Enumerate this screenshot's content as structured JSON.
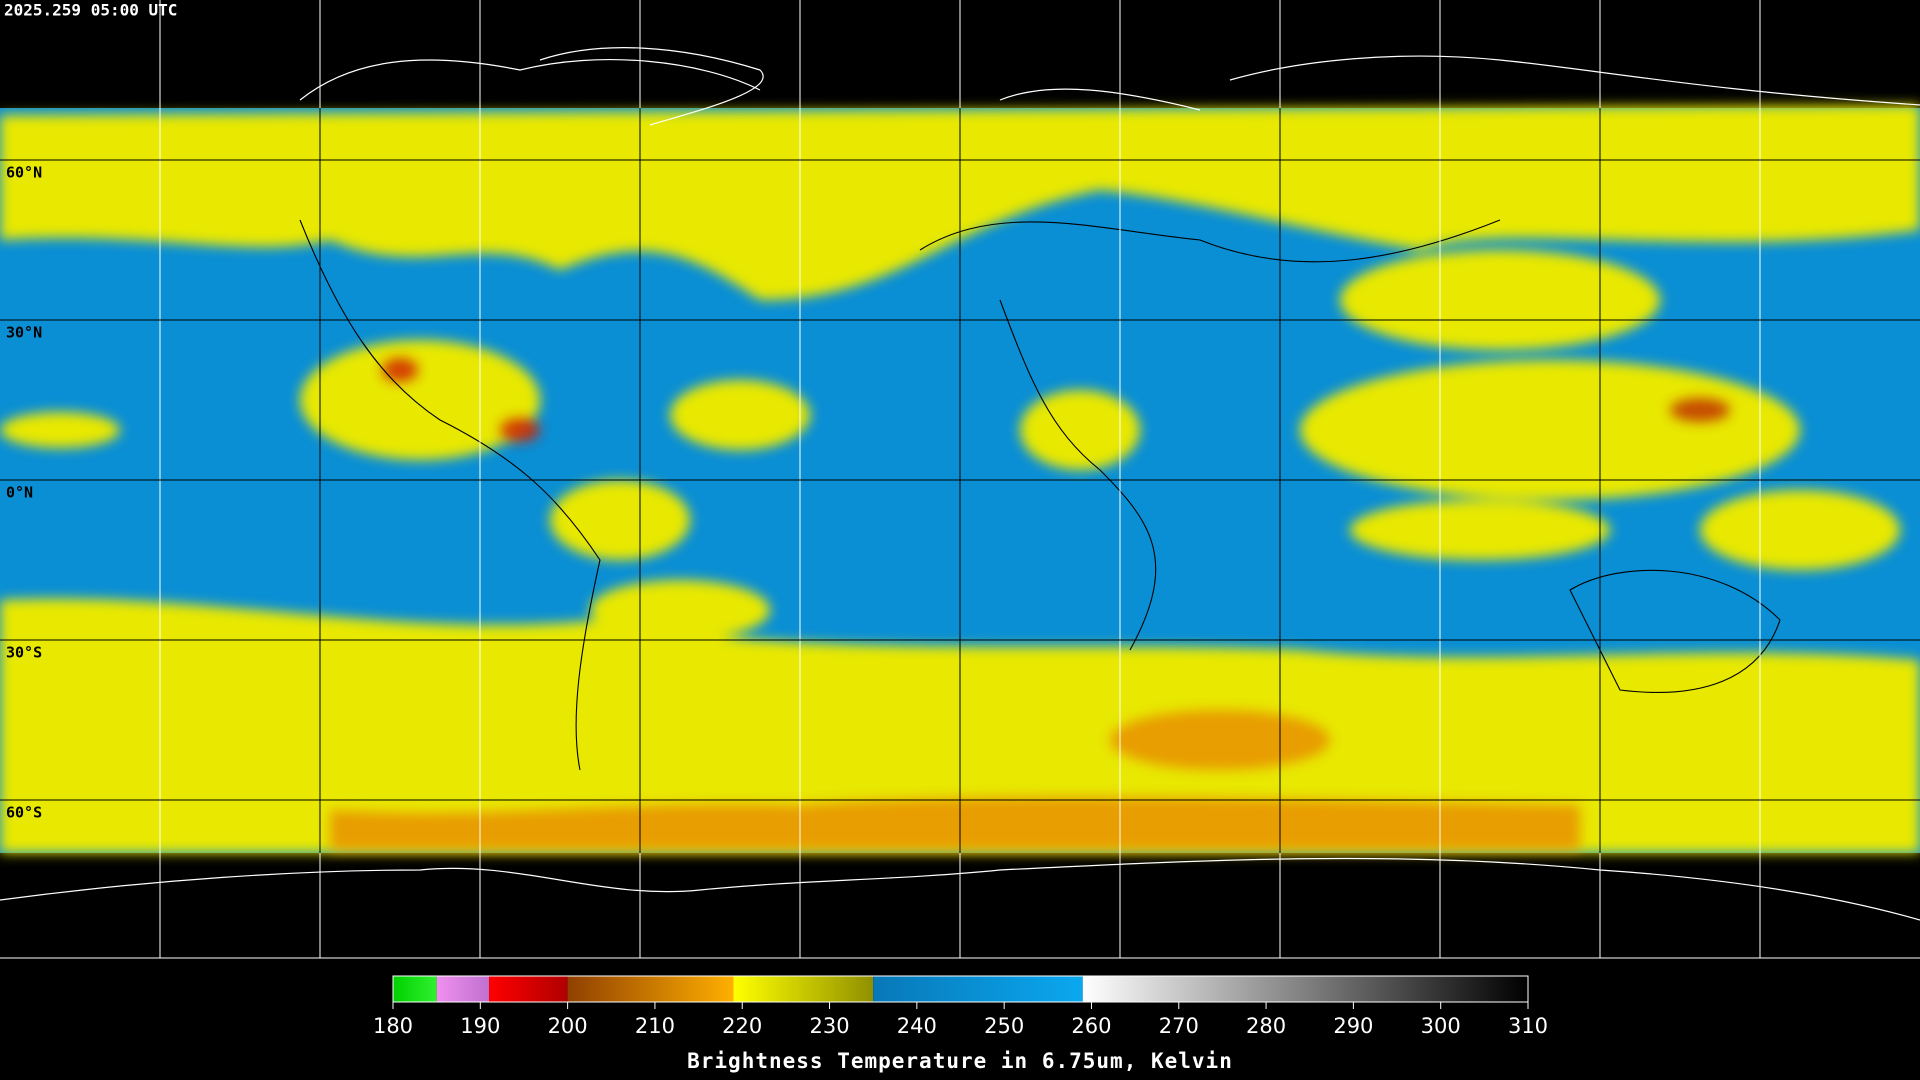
{
  "timestamp": "2025.259 05:00 UTC",
  "map": {
    "ylim": [
      -90,
      90
    ],
    "latitudes": [
      {
        "value": 60,
        "label": "60°N"
      },
      {
        "value": 30,
        "label": "30°N"
      },
      {
        "value": 0,
        "label": "0°N"
      },
      {
        "value": -30,
        "label": "30°S"
      },
      {
        "value": -60,
        "label": "60°S"
      }
    ]
  },
  "colorbar": {
    "range": [
      180,
      310
    ],
    "ticks": [
      180,
      190,
      200,
      210,
      220,
      230,
      240,
      250,
      260,
      270,
      280,
      290,
      300,
      310
    ],
    "label": "Brightness Temperature in 6.75um, Kelvin",
    "stops": [
      {
        "from": 180,
        "to": 185,
        "colors": [
          "#00d000",
          "#30f030"
        ]
      },
      {
        "from": 185,
        "to": 191,
        "colors": [
          "#f090f0",
          "#c070d0"
        ]
      },
      {
        "from": 191,
        "to": 200,
        "colors": [
          "#ff0000",
          "#b00000"
        ]
      },
      {
        "from": 200,
        "to": 219,
        "colors": [
          "#904000",
          "#ffb000"
        ]
      },
      {
        "from": 219,
        "to": 235,
        "colors": [
          "#ffff00",
          "#909000"
        ]
      },
      {
        "from": 235,
        "to": 259,
        "colors": [
          "#0878b8",
          "#0aa8f0"
        ]
      },
      {
        "from": 259,
        "to": 310,
        "colors": [
          "#ffffff",
          "#000000"
        ]
      }
    ]
  }
}
